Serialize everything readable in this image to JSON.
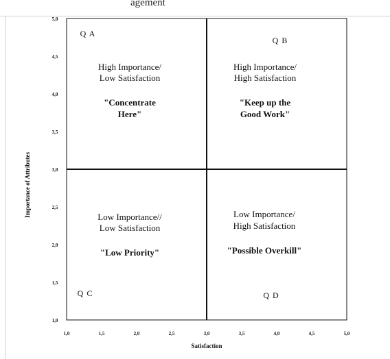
{
  "header": {
    "text": "agement"
  },
  "chart_data": {
    "type": "quadrant",
    "xlabel": "Satisfaction",
    "ylabel": "Importance of Attributes",
    "xlim": [
      1.0,
      5.0
    ],
    "ylim": [
      1.0,
      5.0
    ],
    "x_ticks": [
      "1,0",
      "1,5",
      "2,0",
      "2,5",
      "3,0",
      "3,5",
      "4,0",
      "4,5",
      "5,0"
    ],
    "y_ticks": [
      "1,0",
      "1,5",
      "2,0",
      "2,5",
      "3,0",
      "3,5",
      "4,0",
      "4,5",
      "5,0"
    ],
    "divider_x": 3.0,
    "divider_y": 3.0,
    "quadrants": [
      {
        "id": "QA",
        "label": "Q A",
        "line1": "High Importance/",
        "line2": "Low Satisfaction",
        "quote1": "\"Concentrate",
        "quote2": "Here\""
      },
      {
        "id": "QB",
        "label": "Q B",
        "line1": "High Importance/",
        "line2": "High Satisfaction",
        "quote1": "\"Keep up  the",
        "quote2": "Good Work\""
      },
      {
        "id": "QC",
        "label": "Q C",
        "line1": "Low Importance//",
        "line2": "Low Satisfaction",
        "quote1": "\"Low Priority\"",
        "quote2": ""
      },
      {
        "id": "QD",
        "label": "Q D",
        "line1": "Low Importance/",
        "line2": "High Satisfaction",
        "quote1": "\"Possible Overkill\"",
        "quote2": ""
      }
    ]
  }
}
